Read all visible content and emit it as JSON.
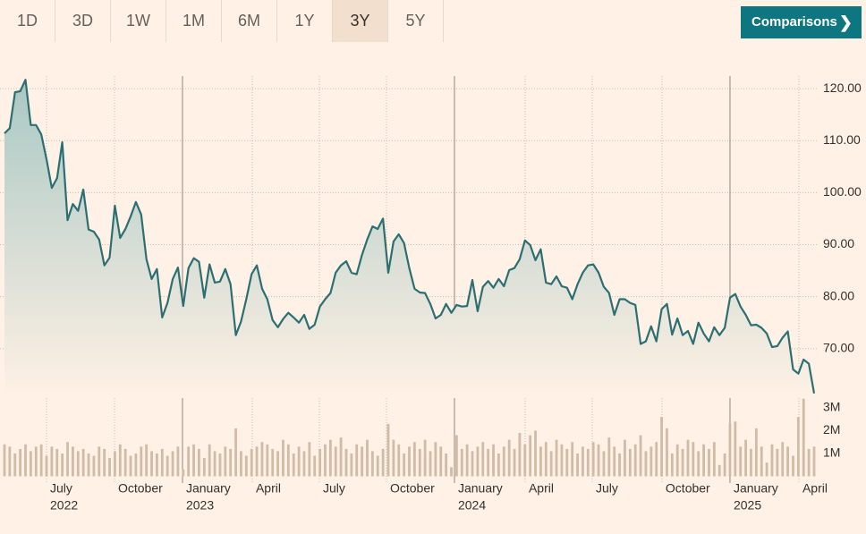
{
  "tabs": [
    "1D",
    "3D",
    "1W",
    "1M",
    "6M",
    "1Y",
    "3Y",
    "5Y"
  ],
  "selected_tab": "3Y",
  "button": "Comparisons",
  "chart_data": [
    {
      "type": "line",
      "fill": true,
      "color": "#2b6f73",
      "grid": true,
      "values": [
        111.4,
        112.4,
        119.3,
        119.5,
        121.7,
        113,
        113,
        111.2,
        106.4,
        100.9,
        102.8,
        109.7,
        94.7,
        97.8,
        96.5,
        100.6,
        92.9,
        92.5,
        91,
        86,
        87.5,
        97.5,
        91.3,
        93,
        95.4,
        98.2,
        95.8,
        87.2,
        83.4,
        85.3,
        76,
        78.8,
        83.4,
        85.6,
        78.2,
        85.5,
        87.4,
        86.7,
        79.8,
        86.2,
        82.7,
        82.9,
        85.3,
        82.4,
        72.6,
        75.2,
        79.5,
        84.3,
        86,
        81.5,
        79.5,
        75.5,
        74.1,
        75.7,
        76.9,
        76,
        75,
        76.5,
        73.8,
        74.6,
        78.1,
        79.5,
        80.7,
        84.6,
        86,
        86.8,
        84.6,
        84.3,
        88,
        91,
        93.5,
        93,
        95,
        84.6,
        90.6,
        92,
        90.3,
        85.5,
        81.5,
        80.8,
        80.7,
        78.6,
        75.8,
        76.5,
        78.6,
        76.9,
        78.4,
        78.1,
        78.2,
        83.2,
        77.2,
        81.9,
        83,
        81.7,
        83.4,
        82,
        85.1,
        85.5,
        87.2,
        90.8,
        89.9,
        87,
        89.1,
        82.7,
        82.4,
        83.9,
        82,
        81.7,
        79.5,
        82.4,
        84.6,
        86,
        86.2,
        84.6,
        81.9,
        80.7,
        76.5,
        79.5,
        79.5,
        78.8,
        78.4,
        70.9,
        71.4,
        74.3,
        71.4,
        77.6,
        78.6,
        72.7,
        75.8,
        72.6,
        73.4,
        70.9,
        75,
        72.9,
        71.4,
        74.1,
        72.6,
        74,
        79.8,
        80.5,
        78.1,
        76.5,
        74.5,
        74.6,
        74,
        72.9,
        70.3,
        70.5,
        72.1,
        73.3,
        66,
        65.2,
        67.9,
        67.1,
        61.4
      ],
      "xlim": [
        0,
        154
      ],
      "xticks": [
        {
          "value": 8.0,
          "label": "July",
          "year": "2022"
        },
        {
          "value": 20.93,
          "label": "October"
        },
        {
          "value": 33.86,
          "label": "January",
          "year": "2023",
          "major": true
        },
        {
          "value": 47.13,
          "label": "April"
        },
        {
          "value": 59.9,
          "label": "July"
        },
        {
          "value": 72.66,
          "label": "October"
        },
        {
          "value": 85.59,
          "label": "January",
          "year": "2024",
          "major": true
        },
        {
          "value": 99.03,
          "label": "April"
        },
        {
          "value": 111.79,
          "label": "July"
        },
        {
          "value": 125.06,
          "label": "October"
        },
        {
          "value": 138,
          "label": "January",
          "year": "2025",
          "major": true
        },
        {
          "value": 151.1,
          "label": "April"
        }
      ],
      "ylim": [
        60.5,
        125
      ],
      "yticks": [
        {
          "value": 70,
          "label": "70.00"
        },
        {
          "value": 80,
          "label": "80.00"
        },
        {
          "value": 90,
          "label": "90.00"
        },
        {
          "value": 100,
          "label": "100.00"
        },
        {
          "value": 110,
          "label": "110.00"
        },
        {
          "value": 120,
          "label": "120.00"
        }
      ]
    },
    {
      "type": "bar",
      "color": "#cfbba6",
      "values": [
        1.4,
        1.3,
        1.0,
        1.2,
        1.4,
        1.1,
        1.3,
        1.4,
        0.9,
        1.3,
        1.2,
        1.0,
        1.5,
        1.3,
        1.1,
        1.2,
        1.0,
        0.9,
        1.3,
        1.2,
        0.8,
        1.1,
        1.4,
        1.2,
        0.9,
        1.0,
        1.3,
        1.4,
        1.1,
        1.0,
        1.2,
        0.9,
        1.1,
        1.3,
        0.3,
        1.3,
        1.4,
        1.2,
        0.8,
        1.4,
        1.1,
        1.0,
        1.3,
        1.2,
        2.1,
        1.1,
        0.9,
        1.2,
        1.3,
        1.5,
        1.4,
        1.2,
        1.1,
        1.6,
        1.4,
        1.0,
        1.3,
        1.1,
        1.5,
        0.9,
        1.2,
        1.4,
        1.6,
        1.3,
        1.7,
        1.2,
        1.0,
        1.4,
        1.3,
        1.6,
        1.1,
        0.9,
        1.2,
        2.3,
        1.6,
        1.4,
        1.0,
        1.3,
        1.5,
        1.2,
        1.6,
        1.1,
        1.5,
        1.3,
        1.0,
        0.4,
        1.8,
        1.2,
        1.4,
        1.1,
        1.3,
        1.5,
        1.2,
        1.4,
        1.0,
        1.3,
        1.6,
        1.2,
        1.9,
        1.4,
        1.8,
        2.0,
        1.3,
        1.5,
        1.1,
        1.6,
        1.4,
        1.2,
        1.5,
        1.0,
        1.3,
        1.2,
        1.5,
        1.4,
        1.1,
        1.7,
        1.3,
        1.0,
        1.6,
        1.2,
        1.4,
        1.8,
        1.1,
        1.3,
        1.5,
        2.6,
        2.1,
        1.0,
        1.4,
        1.2,
        1.6,
        1.5,
        1.1,
        1.4,
        1.2,
        1.5,
        0.5,
        1.0,
        2.3,
        2.4,
        1.3,
        1.6,
        1.2,
        2.1,
        1.3,
        0.6,
        1.4,
        1.2,
        1.5,
        1.3,
        0.9,
        2.6,
        3.4,
        1.2,
        1.3
      ],
      "xlim": [
        0,
        154
      ],
      "ylim": [
        0,
        3.39
      ],
      "yticks": [
        {
          "value": 1,
          "label": "1M"
        },
        {
          "value": 2,
          "label": "2M"
        },
        {
          "value": 3,
          "label": "3M"
        }
      ]
    }
  ]
}
